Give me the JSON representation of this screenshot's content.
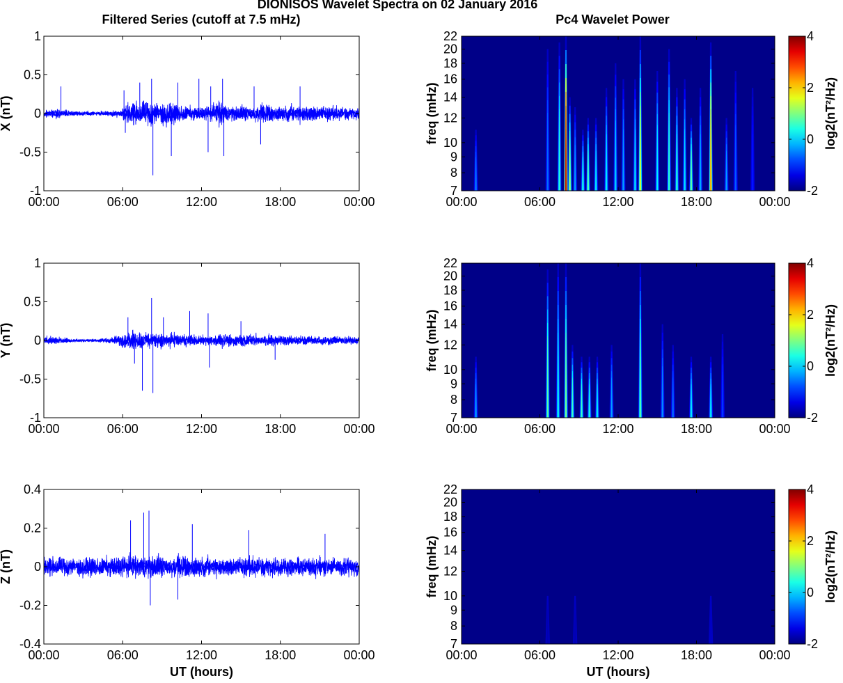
{
  "figure": {
    "title": "DIONISOS Wavelet Spectra on 02 January 2016",
    "left_column_title": "Filtered Series (cutoff at 7.5 mHz)",
    "right_column_title": "Pc4 Wavelet Power"
  },
  "chart_data": [
    {
      "type": "line",
      "component": "X",
      "ylabel": "X (nT)",
      "xlabel": "",
      "ylim": [
        -1,
        1
      ],
      "yticks": [
        "-1",
        "-0.5",
        "0",
        "0.5",
        "1"
      ],
      "xticks": [
        "00:00",
        "06:00",
        "12:00",
        "18:00",
        "00:00"
      ],
      "xlim_hours": [
        0,
        24
      ],
      "series_color": "#0000ff",
      "noise_envelope": {
        "hours": [
          0,
          1,
          2,
          3,
          4,
          5,
          5.9,
          6.0,
          7,
          8,
          9,
          10,
          11,
          12,
          13,
          13.5,
          14,
          15,
          16,
          17,
          18,
          19,
          20,
          21,
          22,
          23,
          24
        ],
        "amplitude": [
          0.05,
          0.07,
          0.04,
          0.03,
          0.03,
          0.04,
          0.05,
          0.14,
          0.15,
          0.17,
          0.16,
          0.13,
          0.1,
          0.09,
          0.12,
          0.2,
          0.1,
          0.1,
          0.12,
          0.12,
          0.1,
          0.12,
          0.13,
          0.11,
          0.1,
          0.09,
          0.08
        ]
      },
      "spikes": [
        {
          "hour": 1.3,
          "value": 0.35
        },
        {
          "hour": 6.1,
          "value": 0.3
        },
        {
          "hour": 6.2,
          "value": -0.25
        },
        {
          "hour": 8.2,
          "value": 0.45
        },
        {
          "hour": 8.3,
          "value": -0.8
        },
        {
          "hour": 7.3,
          "value": 0.4
        },
        {
          "hour": 9.7,
          "value": -0.55
        },
        {
          "hour": 10.2,
          "value": 0.4
        },
        {
          "hour": 11.8,
          "value": 0.45
        },
        {
          "hour": 12.5,
          "value": -0.5
        },
        {
          "hour": 12.7,
          "value": 0.35
        },
        {
          "hour": 13.6,
          "value": 0.45
        },
        {
          "hour": 13.7,
          "value": -0.55
        },
        {
          "hour": 16.0,
          "value": 0.35
        },
        {
          "hour": 16.5,
          "value": -0.4
        },
        {
          "hour": 19.5,
          "value": 0.35
        }
      ]
    },
    {
      "type": "line",
      "component": "Y",
      "ylabel": "Y (nT)",
      "xlabel": "",
      "ylim": [
        -1,
        1
      ],
      "yticks": [
        "-1",
        "-0.5",
        "0",
        "0.5",
        "1"
      ],
      "xticks": [
        "00:00",
        "06:00",
        "12:00",
        "18:00",
        "00:00"
      ],
      "xlim_hours": [
        0,
        24
      ],
      "series_color": "#0000ff",
      "noise_envelope": {
        "hours": [
          0,
          1,
          2,
          3,
          4,
          5,
          6,
          7,
          8,
          9,
          10,
          11,
          12,
          13,
          14,
          15,
          16,
          17,
          18,
          19,
          20,
          21,
          22,
          23,
          24
        ],
        "amplitude": [
          0.05,
          0.06,
          0.03,
          0.02,
          0.02,
          0.04,
          0.1,
          0.12,
          0.12,
          0.1,
          0.09,
          0.08,
          0.07,
          0.08,
          0.09,
          0.08,
          0.09,
          0.08,
          0.07,
          0.07,
          0.07,
          0.06,
          0.06,
          0.06,
          0.05
        ]
      },
      "spikes": [
        {
          "hour": 6.4,
          "value": 0.3
        },
        {
          "hour": 6.9,
          "value": -0.3
        },
        {
          "hour": 7.5,
          "value": -0.65
        },
        {
          "hour": 8.2,
          "value": 0.55
        },
        {
          "hour": 8.3,
          "value": -0.68
        },
        {
          "hour": 9.1,
          "value": 0.3
        },
        {
          "hour": 11.1,
          "value": 0.38
        },
        {
          "hour": 12.5,
          "value": 0.35
        },
        {
          "hour": 12.6,
          "value": -0.35
        },
        {
          "hour": 15.0,
          "value": 0.25
        },
        {
          "hour": 17.6,
          "value": -0.25
        }
      ]
    },
    {
      "type": "line",
      "component": "Z",
      "ylabel": "Z (nT)",
      "xlabel": "UT (hours)",
      "ylim": [
        -0.4,
        0.4
      ],
      "yticks": [
        "-0.4",
        "-0.2",
        "0",
        "0.2",
        "0.4"
      ],
      "xticks": [
        "00:00",
        "06:00",
        "12:00",
        "18:00",
        "00:00"
      ],
      "xlim_hours": [
        0,
        24
      ],
      "series_color": "#0000ff",
      "noise_envelope": {
        "hours": [
          0,
          2,
          4,
          6,
          8,
          10,
          12,
          14,
          16,
          18,
          20,
          22,
          24
        ],
        "amplitude": [
          0.05,
          0.05,
          0.05,
          0.06,
          0.06,
          0.06,
          0.055,
          0.055,
          0.055,
          0.055,
          0.055,
          0.05,
          0.05
        ]
      },
      "spikes": [
        {
          "hour": 6.6,
          "value": 0.24
        },
        {
          "hour": 7.6,
          "value": 0.28
        },
        {
          "hour": 8.0,
          "value": 0.29
        },
        {
          "hour": 8.1,
          "value": -0.2
        },
        {
          "hour": 11.3,
          "value": 0.22
        },
        {
          "hour": 15.6,
          "value": 0.19
        },
        {
          "hour": 21.4,
          "value": 0.17
        },
        {
          "hour": 10.2,
          "value": -0.17
        }
      ]
    },
    {
      "type": "heatmap",
      "component": "X",
      "ylabel": "freq (mHz)",
      "xlabel": "",
      "ylim_mHz": [
        7,
        22
      ],
      "yticks": [
        "7",
        "8",
        "9",
        "10",
        "12",
        "14",
        "16",
        "18",
        "20",
        "22"
      ],
      "xticks": [
        "00:00",
        "06:00",
        "12:00",
        "18:00",
        "00:00"
      ],
      "xlim_hours": [
        0,
        24
      ],
      "colorbar": {
        "label": "log2(nT²/Hz)",
        "ticks": [
          "-2",
          "0",
          "2",
          "4"
        ],
        "range": [
          -2,
          4
        ],
        "colormap": "jet"
      },
      "bursts": [
        {
          "hour": 1.1,
          "top_mHz": 11,
          "peak": -0.5
        },
        {
          "hour": 6.6,
          "top_mHz": 20,
          "peak": -0.6
        },
        {
          "hour": 7.5,
          "top_mHz": 21,
          "peak": 0.5
        },
        {
          "hour": 8.0,
          "top_mHz": 22,
          "peak": 3.8
        },
        {
          "hour": 8.3,
          "top_mHz": 14,
          "peak": 1.2
        },
        {
          "hour": 8.7,
          "top_mHz": 13,
          "peak": -0.3
        },
        {
          "hour": 9.3,
          "top_mHz": 11,
          "peak": 0.4
        },
        {
          "hour": 9.7,
          "top_mHz": 12,
          "peak": 0.8
        },
        {
          "hour": 10.3,
          "top_mHz": 12,
          "peak": 0.2
        },
        {
          "hour": 11.1,
          "top_mHz": 15,
          "peak": 0.2
        },
        {
          "hour": 11.8,
          "top_mHz": 18,
          "peak": 0.0
        },
        {
          "hour": 12.4,
          "top_mHz": 16,
          "peak": -0.3
        },
        {
          "hour": 13.3,
          "top_mHz": 16,
          "peak": 0.1
        },
        {
          "hour": 13.7,
          "top_mHz": 22,
          "peak": 1.6
        },
        {
          "hour": 15.0,
          "top_mHz": 17,
          "peak": 0.2
        },
        {
          "hour": 15.9,
          "top_mHz": 20,
          "peak": 0.6
        },
        {
          "hour": 16.5,
          "top_mHz": 15,
          "peak": 0.5
        },
        {
          "hour": 17.1,
          "top_mHz": 16,
          "peak": 0.1
        },
        {
          "hour": 17.6,
          "top_mHz": 12,
          "peak": 0.9
        },
        {
          "hour": 18.3,
          "top_mHz": 15,
          "peak": -0.2
        },
        {
          "hour": 19.1,
          "top_mHz": 21,
          "peak": 2.4
        },
        {
          "hour": 20.3,
          "top_mHz": 12,
          "peak": -0.3
        },
        {
          "hour": 21.0,
          "top_mHz": 17,
          "peak": -0.7
        },
        {
          "hour": 22.3,
          "top_mHz": 15,
          "peak": -1.1
        }
      ]
    },
    {
      "type": "heatmap",
      "component": "Y",
      "ylabel": "freq (mHz)",
      "xlabel": "",
      "ylim_mHz": [
        7,
        22
      ],
      "yticks": [
        "7",
        "8",
        "9",
        "10",
        "12",
        "14",
        "16",
        "18",
        "20",
        "22"
      ],
      "xticks": [
        "00:00",
        "06:00",
        "12:00",
        "18:00",
        "00:00"
      ],
      "xlim_hours": [
        0,
        24
      ],
      "colorbar": {
        "label": "log2(nT²/Hz)",
        "ticks": [
          "-2",
          "0",
          "2",
          "4"
        ],
        "range": [
          -2,
          4
        ],
        "colormap": "jet"
      },
      "bursts": [
        {
          "hour": 1.1,
          "top_mHz": 11,
          "peak": -0.3
        },
        {
          "hour": 6.6,
          "top_mHz": 21,
          "peak": 0.8
        },
        {
          "hour": 7.4,
          "top_mHz": 22,
          "peak": 0.3
        },
        {
          "hour": 8.0,
          "top_mHz": 22,
          "peak": 1.0
        },
        {
          "hour": 8.5,
          "top_mHz": 12,
          "peak": 0.6
        },
        {
          "hour": 9.2,
          "top_mHz": 11,
          "peak": 0.6
        },
        {
          "hour": 9.8,
          "top_mHz": 11,
          "peak": 0.4
        },
        {
          "hour": 10.4,
          "top_mHz": 11,
          "peak": 0.2
        },
        {
          "hour": 11.5,
          "top_mHz": 12,
          "peak": -0.3
        },
        {
          "hour": 13.7,
          "top_mHz": 22,
          "peak": 0.8
        },
        {
          "hour": 15.4,
          "top_mHz": 14,
          "peak": -0.4
        },
        {
          "hour": 16.2,
          "top_mHz": 12,
          "peak": -0.6
        },
        {
          "hour": 17.6,
          "top_mHz": 11,
          "peak": 0.2
        },
        {
          "hour": 19.1,
          "top_mHz": 11,
          "peak": 0.2
        },
        {
          "hour": 20.0,
          "top_mHz": 13,
          "peak": -0.9
        }
      ]
    },
    {
      "type": "heatmap",
      "component": "Z",
      "ylabel": "freq (mHz)",
      "xlabel": "UT (hours)",
      "ylim_mHz": [
        7,
        22
      ],
      "yticks": [
        "7",
        "8",
        "9",
        "10",
        "12",
        "14",
        "16",
        "18",
        "20",
        "22"
      ],
      "xticks": [
        "00:00",
        "06:00",
        "12:00",
        "18:00",
        "00:00"
      ],
      "xlim_hours": [
        0,
        24
      ],
      "colorbar": {
        "label": "log2(nT²/Hz)",
        "ticks": [
          "-2",
          "0",
          "2",
          "4"
        ],
        "range": [
          -2,
          4
        ],
        "colormap": "jet"
      },
      "bursts": [
        {
          "hour": 6.6,
          "top_mHz": 10,
          "peak": -1.7
        },
        {
          "hour": 8.7,
          "top_mHz": 10,
          "peak": -1.7
        },
        {
          "hour": 19.1,
          "top_mHz": 10,
          "peak": -1.6
        }
      ]
    }
  ]
}
